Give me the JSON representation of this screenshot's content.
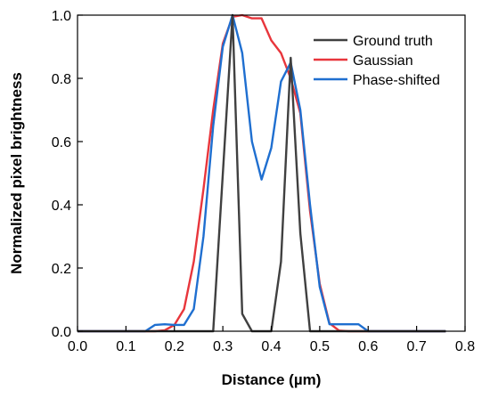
{
  "chart_data": {
    "type": "line",
    "title": "",
    "xlabel": "Distance (µm)",
    "ylabel": "Normalized pixel brightness",
    "xlim": [
      0.0,
      0.8
    ],
    "ylim": [
      0.0,
      1.0
    ],
    "xticks": [
      "0.0",
      "0.1",
      "0.2",
      "0.3",
      "0.4",
      "0.5",
      "0.6",
      "0.7",
      "0.8"
    ],
    "yticks": [
      "0.0",
      "0.2",
      "0.4",
      "0.6",
      "0.8",
      "1.0"
    ],
    "grid": false,
    "legend_position": "top-right",
    "series": [
      {
        "name": "Ground truth",
        "color": "#404040",
        "x": [
          0.0,
          0.28,
          0.32,
          0.34,
          0.36,
          0.4,
          0.42,
          0.44,
          0.46,
          0.48,
          0.76
        ],
        "y": [
          0.0,
          0.0,
          1.0,
          0.055,
          0.0,
          0.0,
          0.22,
          0.865,
          0.31,
          0.0,
          0.0
        ]
      },
      {
        "name": "Gaussian",
        "color": "#e8363c",
        "x": [
          0.0,
          0.16,
          0.18,
          0.2,
          0.22,
          0.24,
          0.26,
          0.28,
          0.3,
          0.32,
          0.34,
          0.36,
          0.38,
          0.4,
          0.42,
          0.44,
          0.46,
          0.48,
          0.5,
          0.52,
          0.54,
          0.56,
          0.76
        ],
        "y": [
          0.0,
          0.0,
          0.003,
          0.02,
          0.07,
          0.22,
          0.45,
          0.7,
          0.91,
          0.995,
          1.0,
          0.99,
          0.99,
          0.92,
          0.88,
          0.8,
          0.69,
          0.38,
          0.15,
          0.025,
          0.002,
          0.0,
          0.0
        ]
      },
      {
        "name": "Phase-shifted",
        "color": "#1f6fd0",
        "x": [
          0.0,
          0.14,
          0.16,
          0.18,
          0.2,
          0.22,
          0.24,
          0.26,
          0.28,
          0.3,
          0.32,
          0.34,
          0.36,
          0.38,
          0.4,
          0.42,
          0.44,
          0.46,
          0.48,
          0.5,
          0.52,
          0.54,
          0.56,
          0.58,
          0.6,
          0.76
        ],
        "y": [
          0.0,
          0.0,
          0.02,
          0.022,
          0.02,
          0.02,
          0.07,
          0.3,
          0.65,
          0.9,
          1.0,
          0.88,
          0.6,
          0.48,
          0.58,
          0.79,
          0.85,
          0.7,
          0.4,
          0.14,
          0.022,
          0.022,
          0.022,
          0.022,
          0.0,
          0.0
        ]
      }
    ]
  }
}
